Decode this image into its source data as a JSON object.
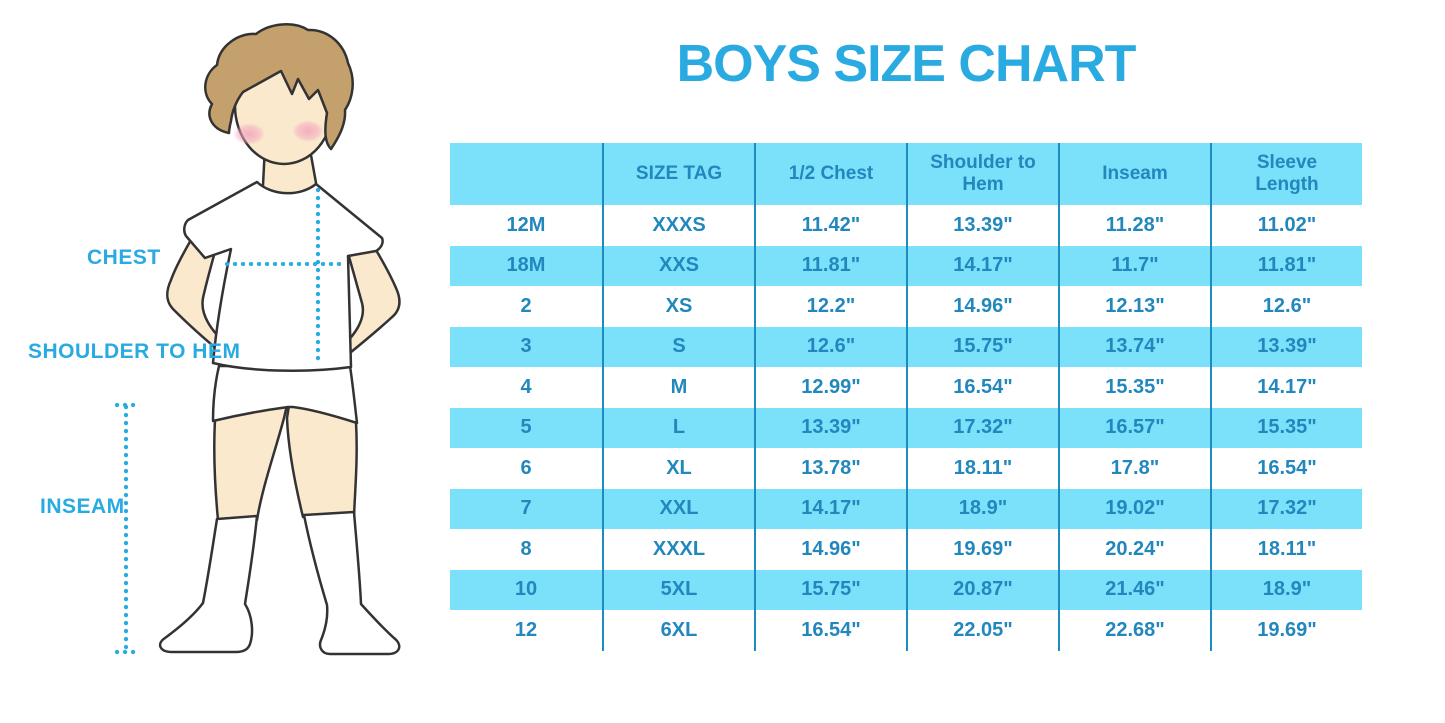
{
  "title": "BOYS SIZE CHART",
  "figure": {
    "labels": {
      "chest": "CHEST",
      "shoulder_to_hem": "SHOULDER TO HEM",
      "inseam": "INSEAM"
    }
  },
  "chart_data": {
    "type": "table",
    "title": "BOYS SIZE CHART",
    "columns": [
      "",
      "SIZE TAG",
      "1/2 Chest",
      "Shoulder to Hem",
      "Inseam",
      "Sleeve Length"
    ],
    "rows": [
      [
        "12M",
        "XXXS",
        "11.42\"",
        "13.39\"",
        "11.28\"",
        "11.02\""
      ],
      [
        "18M",
        "XXS",
        "11.81\"",
        "14.17\"",
        "11.7\"",
        "11.81\""
      ],
      [
        "2",
        "XS",
        "12.2\"",
        "14.96\"",
        "12.13\"",
        "12.6\""
      ],
      [
        "3",
        "S",
        "12.6\"",
        "15.75\"",
        "13.74\"",
        "13.39\""
      ],
      [
        "4",
        "M",
        "12.99\"",
        "16.54\"",
        "15.35\"",
        "14.17\""
      ],
      [
        "5",
        "L",
        "13.39\"",
        "17.32\"",
        "16.57\"",
        "15.35\""
      ],
      [
        "6",
        "XL",
        "13.78\"",
        "18.11\"",
        "17.8\"",
        "16.54\""
      ],
      [
        "7",
        "XXL",
        "14.17\"",
        "18.9\"",
        "19.02\"",
        "17.32\""
      ],
      [
        "8",
        "XXXL",
        "14.96\"",
        "19.69\"",
        "20.24\"",
        "18.11\""
      ],
      [
        "10",
        "5XL",
        "15.75\"",
        "20.87\"",
        "21.46\"",
        "18.9\""
      ],
      [
        "12",
        "6XL",
        "16.54\"",
        "22.05\"",
        "22.68\"",
        "19.69\""
      ]
    ],
    "row_striping": "white / light-blue alternating, header light-blue",
    "grid": "vertical column separators only, no horizontal lines"
  },
  "colors": {
    "accent": "#29ABE2",
    "table_text": "#2287BD",
    "row_alt_bg": "#7BE0FA",
    "grid_line": "#1E8CBE",
    "outline": "#333333",
    "skin": "#FBE9CE",
    "hair": "#C3A06C",
    "blush": "#F2A3BB"
  }
}
